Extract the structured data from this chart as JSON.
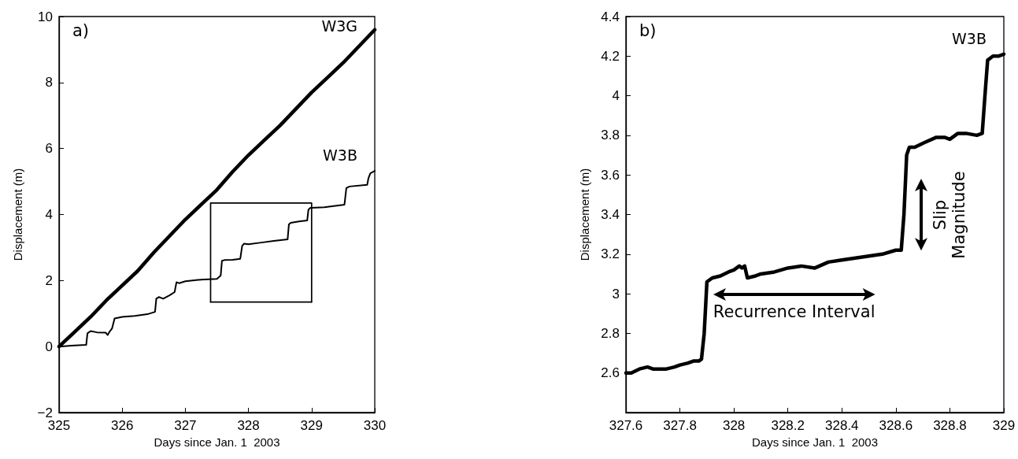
{
  "chart_data": [
    {
      "type": "line",
      "title": "a)",
      "xlabel": "Days since Jan. 1  2003",
      "ylabel": "Displacement (m)",
      "xlim": [
        325,
        330
      ],
      "xticks": [
        325,
        326,
        327,
        328,
        329,
        330
      ],
      "ylim": [
        -2,
        10
      ],
      "yticks": [
        {
          "value": -2,
          "label": "−2"
        },
        0,
        2,
        4,
        6,
        8,
        10
      ],
      "grid": false,
      "legend": false,
      "marker": "none",
      "line_style": "solid",
      "series": [
        {
          "name": "W3G",
          "color": "#000000",
          "x": [
            325,
            325.25,
            325.5,
            325.75,
            326,
            326.25,
            326.5,
            326.75,
            327,
            327.25,
            327.5,
            327.75,
            328,
            328.25,
            328.5,
            328.75,
            329,
            329.25,
            329.5,
            329.75,
            330
          ],
          "values": [
            0,
            0.45,
            0.9,
            1.4,
            1.85,
            2.3,
            2.85,
            3.35,
            3.85,
            4.3,
            4.75,
            5.3,
            5.8,
            6.25,
            6.7,
            7.2,
            7.7,
            8.15,
            8.6,
            9.1,
            9.6
          ]
        },
        {
          "name": "W3B",
          "color": "#000000",
          "x": [
            325,
            325.2,
            325.43,
            325.45,
            325.5,
            325.6,
            325.74,
            325.77,
            325.8,
            325.84,
            325.88,
            326,
            326.2,
            326.4,
            326.52,
            326.54,
            326.58,
            326.65,
            326.75,
            326.83,
            326.86,
            326.9,
            327,
            327.2,
            327.5,
            327.56,
            327.58,
            327.62,
            327.75,
            327.87,
            327.9,
            327.93,
            328,
            328.2,
            328.4,
            328.62,
            328.64,
            328.67,
            328.8,
            328.93,
            328.95,
            328.98,
            329.2,
            329.52,
            329.55,
            329.6,
            329.88,
            329.9,
            329.93,
            330
          ],
          "values": [
            0,
            0.03,
            0.05,
            0.4,
            0.47,
            0.43,
            0.42,
            0.35,
            0.45,
            0.55,
            0.85,
            0.9,
            0.93,
            0.98,
            1.05,
            1.45,
            1.5,
            1.45,
            1.55,
            1.65,
            1.95,
            1.92,
            1.98,
            2.02,
            2.05,
            2.15,
            2.6,
            2.62,
            2.63,
            2.66,
            3.05,
            3.12,
            3.1,
            3.15,
            3.2,
            3.25,
            3.7,
            3.75,
            3.79,
            3.82,
            4.15,
            4.2,
            4.22,
            4.3,
            4.8,
            4.85,
            4.9,
            5.1,
            5.25,
            5.32
          ]
        },
        {
          "color": "#000000",
          "x": [
            327.4,
            327.4,
            329,
            329
          ],
          "values": [
            1.35,
            4.35,
            4.35,
            1.35
          ]
        },
        {
          "color": "#000000",
          "x": [
            327.4,
            329
          ],
          "values": [
            1.35,
            1.35
          ]
        }
      ]
    },
    {
      "type": "line",
      "title": "b)",
      "xlabel": "Days since Jan. 1  2003",
      "ylabel": "Displacement (m)",
      "xlim": [
        327.6,
        329
      ],
      "xticks": [
        327.6,
        327.8,
        328,
        328.2,
        328.4,
        328.6,
        328.8,
        329
      ],
      "ylim": [
        2.4,
        4.4
      ],
      "yticks": [
        2.6,
        2.8,
        3,
        3.2,
        3.4,
        3.6,
        3.8,
        4,
        4.2,
        4.4
      ],
      "grid": false,
      "legend": false,
      "marker": "none",
      "line_style": "solid",
      "annotations": [
        {
          "text": "Recurrence Interval",
          "x": 327.9,
          "y": 3.06
        },
        {
          "text": "Slip\nMagnitude",
          "x": 328.63,
          "y": 3.4
        }
      ],
      "series": [
        {
          "name": "W3B",
          "color": "#000000",
          "x": [
            327.6,
            327.62,
            327.65,
            327.68,
            327.7,
            327.73,
            327.75,
            327.78,
            327.8,
            327.83,
            327.85,
            327.87,
            327.88,
            327.89,
            327.9,
            327.92,
            327.95,
            327.98,
            328,
            328.02,
            328.03,
            328.04,
            328.05,
            328.08,
            328.1,
            328.15,
            328.2,
            328.25,
            328.3,
            328.35,
            328.4,
            328.45,
            328.5,
            328.55,
            328.6,
            328.62,
            328.63,
            328.64,
            328.65,
            328.67,
            328.7,
            328.75,
            328.78,
            328.8,
            328.83,
            328.86,
            328.9,
            328.92,
            328.93,
            328.94,
            328.96,
            328.98,
            329
          ],
          "values": [
            2.6,
            2.6,
            2.62,
            2.63,
            2.62,
            2.62,
            2.62,
            2.63,
            2.64,
            2.65,
            2.66,
            2.66,
            2.67,
            2.8,
            3.06,
            3.08,
            3.09,
            3.11,
            3.12,
            3.14,
            3.13,
            3.14,
            3.08,
            3.09,
            3.1,
            3.11,
            3.13,
            3.14,
            3.13,
            3.16,
            3.17,
            3.18,
            3.19,
            3.2,
            3.22,
            3.22,
            3.4,
            3.7,
            3.74,
            3.74,
            3.76,
            3.79,
            3.79,
            3.78,
            3.81,
            3.81,
            3.8,
            3.81,
            4.0,
            4.18,
            4.2,
            4.2,
            4.21
          ]
        }
      ]
    }
  ]
}
